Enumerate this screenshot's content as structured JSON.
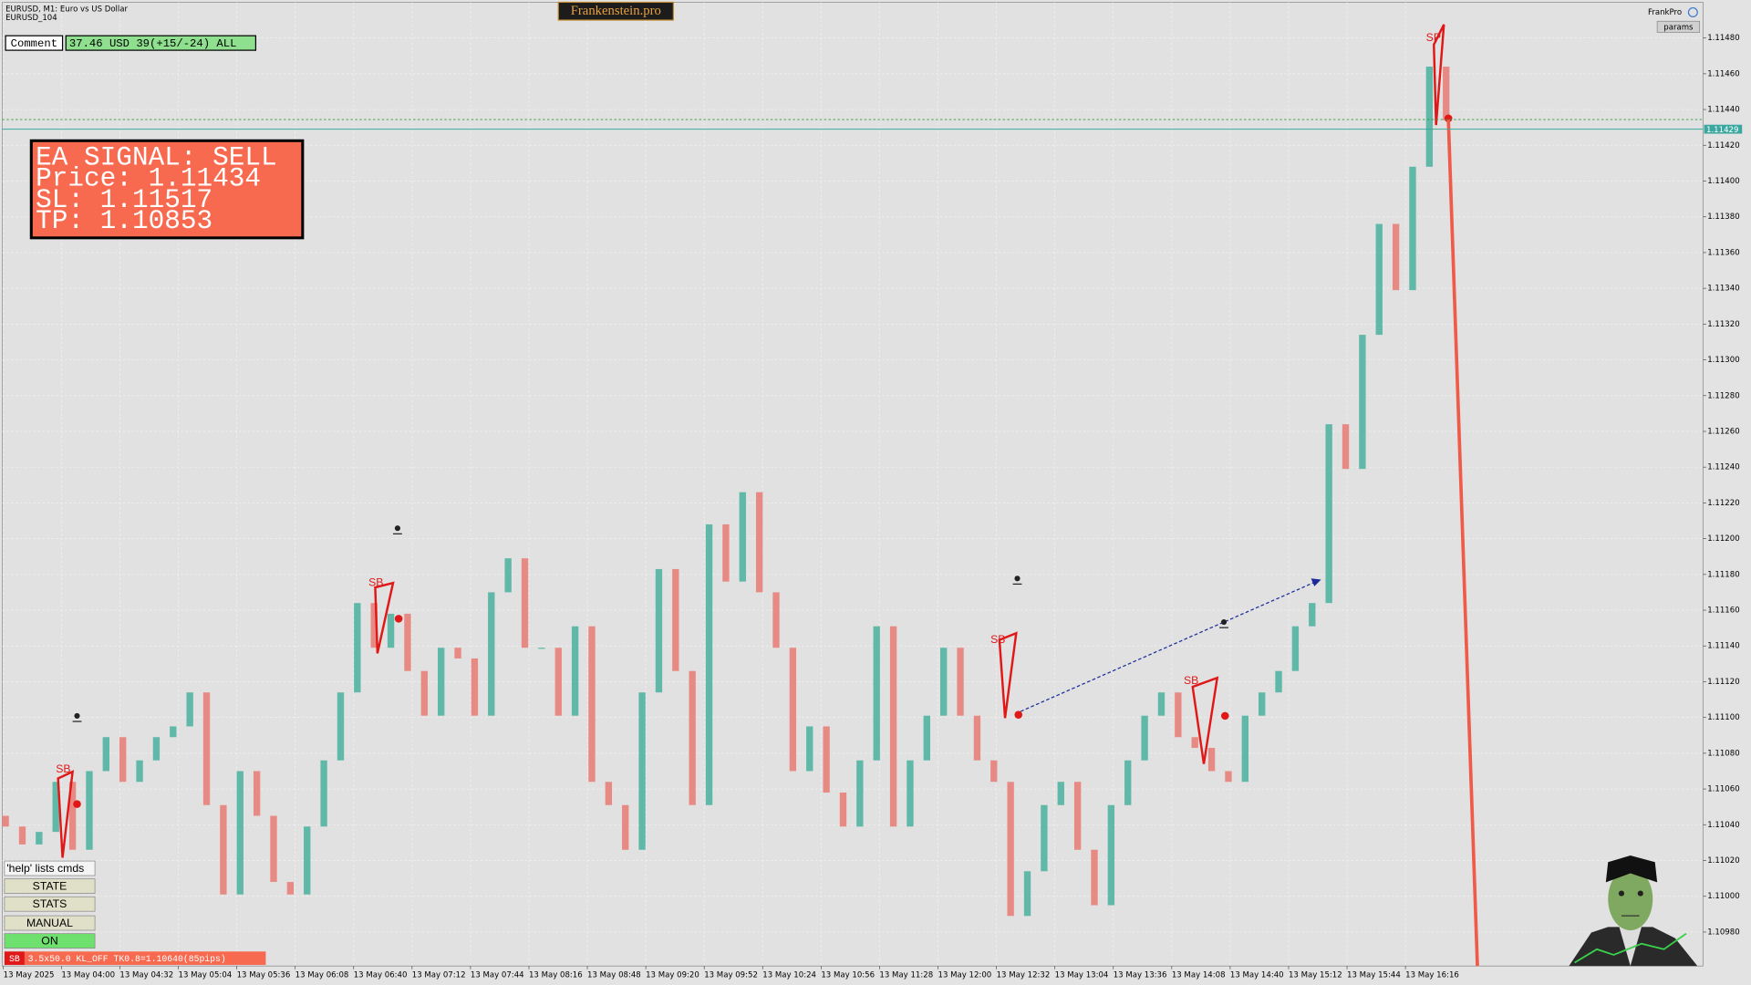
{
  "header": {
    "symbol": "EURUSD, M1:  Euro vs US Dollar",
    "instance": "EURUSD_104",
    "brand": "Frankenstein.pro",
    "user": "FrankPro",
    "params_button": "params"
  },
  "comment": {
    "label": "Comment",
    "value": "37.46 USD 39(+15/-24) ALL"
  },
  "signal": {
    "lines": [
      "EA SIGNAL: SELL",
      "Price: 1.11434",
      "SL:     1.11517",
      "TP:     1.10853"
    ]
  },
  "buttons": [
    "'help' lists cmds",
    "STATE",
    "STATS",
    "MANUAL",
    "ON"
  ],
  "status": {
    "tag": "SB",
    "text": "3.5x50.0 KL_OFF TK0.8=1.10640(85pips)"
  },
  "chart_data": {
    "type": "candlestick",
    "trade_labels": [
      "SB",
      "SB",
      "SB",
      "SB",
      "SP"
    ],
    "xtick_labels": [
      "13 May 2025",
      "13 May 04:00",
      "13 May 04:32",
      "13 May 05:04",
      "13 May 05:36",
      "13 May 06:08",
      "13 May 06:40",
      "13 May 07:12",
      "13 May 07:44",
      "13 May 08:16",
      "13 May 08:48",
      "13 May 09:20",
      "13 May 09:52",
      "13 May 10:24",
      "13 May 10:56",
      "13 May 11:28",
      "13 May 12:00",
      "13 May 12:32",
      "13 May 13:04",
      "13 May 13:36",
      "13 May 14:08",
      "13 May 14:40",
      "13 May 15:12",
      "13 May 15:44",
      "13 May 16:16"
    ],
    "ylim": [
      1.10961,
      1.115
    ],
    "yticks": [
      {
        "value": 1.1148,
        "label": "1.11480"
      },
      {
        "value": 1.1146,
        "label": "1.11460"
      },
      {
        "value": 1.1144,
        "label": "1.11440"
      },
      {
        "value": 1.1142,
        "label": "1.11420"
      },
      {
        "value": 1.114,
        "label": "1.11400"
      },
      {
        "value": 1.1138,
        "label": "1.11380"
      },
      {
        "value": 1.1136,
        "label": "1.11360"
      },
      {
        "value": 1.1134,
        "label": "1.11340"
      },
      {
        "value": 1.1132,
        "label": "1.11320"
      },
      {
        "value": 1.113,
        "label": "1.11300"
      },
      {
        "value": 1.1128,
        "label": "1.11280"
      },
      {
        "value": 1.1126,
        "label": "1.11260"
      },
      {
        "value": 1.1124,
        "label": "1.11240"
      },
      {
        "value": 1.1122,
        "label": "1.11220"
      },
      {
        "value": 1.112,
        "label": "1.11200"
      },
      {
        "value": 1.1118,
        "label": "1.11180"
      },
      {
        "value": 1.1116,
        "label": "1.11160"
      },
      {
        "value": 1.1114,
        "label": "1.11140"
      },
      {
        "value": 1.1112,
        "label": "1.11120"
      },
      {
        "value": 1.111,
        "label": "1.11100"
      },
      {
        "value": 1.1108,
        "label": "1.11080"
      },
      {
        "value": 1.1106,
        "label": "1.11060"
      },
      {
        "value": 1.1104,
        "label": "1.11040"
      },
      {
        "value": 1.1102,
        "label": "1.11020"
      },
      {
        "value": 1.11,
        "label": "1.11000"
      },
      {
        "value": 1.1098,
        "label": "1.10980"
      }
    ],
    "current_price": {
      "value": 1.11429,
      "label": "1.11429"
    },
    "up_color": "#5fb8a8",
    "down_color": "#e88a84",
    "open": [
      1.11045,
      1.11039,
      1.11029,
      1.11036,
      1.11064,
      1.11026,
      1.1107,
      1.11089,
      1.11064,
      1.11076,
      1.11089,
      1.11095,
      1.11114,
      1.11051,
      1.11001,
      1.1107,
      1.11045,
      1.11008,
      1.11001,
      1.11039,
      1.11076,
      1.11114,
      1.11164,
      1.11139,
      1.11158,
      1.11126,
      1.11101,
      1.11139,
      1.11133,
      1.11101,
      1.1117,
      1.11189,
      1.11139,
      1.11139,
      1.11101,
      1.11151,
      1.11064,
      1.11051,
      1.11026,
      1.11114,
      1.11183,
      1.11126,
      1.11051,
      1.11208,
      1.11176,
      1.11226,
      1.1117,
      1.11139,
      1.1107,
      1.11095,
      1.11058,
      1.11039,
      1.11076,
      1.11151,
      1.11039,
      1.11076,
      1.11101,
      1.11139,
      1.11101,
      1.11076,
      1.11064,
      1.10989,
      1.11014,
      1.11051,
      1.11064,
      1.11026,
      1.10995,
      1.11051,
      1.11076,
      1.11101,
      1.11114,
      1.11089,
      1.11083,
      1.1107,
      1.11064,
      1.11101,
      1.11114,
      1.11126,
      1.11151,
      1.11164,
      1.11264,
      1.11239,
      1.11314,
      1.11376,
      1.11339,
      1.11408,
      1.11464
    ],
    "close": [
      1.11039,
      1.11029,
      1.11036,
      1.11064,
      1.11026,
      1.1107,
      1.11089,
      1.11064,
      1.11076,
      1.11089,
      1.11095,
      1.11114,
      1.11051,
      1.11001,
      1.1107,
      1.11045,
      1.11008,
      1.11001,
      1.11039,
      1.11076,
      1.11114,
      1.11164,
      1.11139,
      1.11158,
      1.11126,
      1.11101,
      1.11139,
      1.11133,
      1.11101,
      1.1117,
      1.11189,
      1.11139,
      1.11139,
      1.11101,
      1.11151,
      1.11064,
      1.11051,
      1.11026,
      1.11114,
      1.11183,
      1.11126,
      1.11051,
      1.11208,
      1.11176,
      1.11226,
      1.1117,
      1.11139,
      1.1107,
      1.11095,
      1.11058,
      1.11039,
      1.11076,
      1.11151,
      1.11039,
      1.11076,
      1.11101,
      1.11139,
      1.11101,
      1.11076,
      1.11064,
      1.10989,
      1.11014,
      1.11051,
      1.11064,
      1.11026,
      1.10995,
      1.11051,
      1.11076,
      1.11101,
      1.11114,
      1.11089,
      1.11083,
      1.1107,
      1.11064,
      1.11101,
      1.11114,
      1.11126,
      1.11151,
      1.11164,
      1.11264,
      1.11239,
      1.11314,
      1.11376,
      1.11339,
      1.11408,
      1.11464,
      1.11434
    ]
  }
}
